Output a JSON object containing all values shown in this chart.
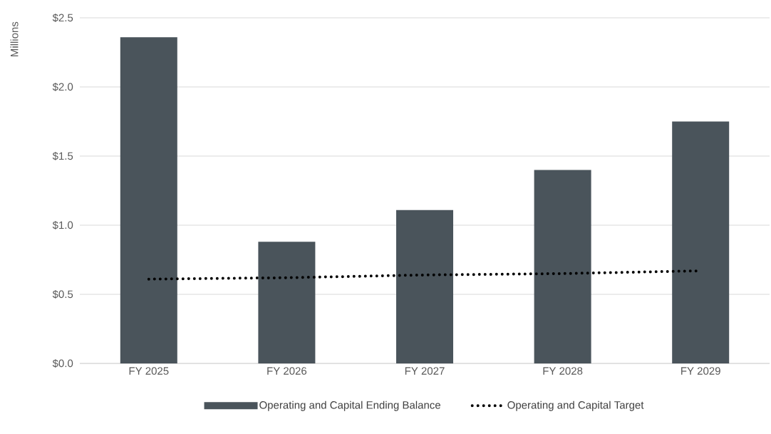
{
  "chart_data": {
    "type": "bar",
    "ylabel": "Millions",
    "categories": [
      "FY 2025",
      "FY 2026",
      "FY 2027",
      "FY 2028",
      "FY 2029"
    ],
    "series": [
      {
        "name": "Operating and Capital Ending Balance",
        "color": "#4a545b",
        "values": [
          2.36,
          0.88,
          1.11,
          1.4,
          1.75
        ]
      },
      {
        "name": "Operating and Capital Target",
        "type": "line",
        "line_style": "dotted",
        "color": "#000000",
        "values": [
          0.61,
          0.62,
          0.64,
          0.65,
          0.67
        ]
      }
    ],
    "ylim": [
      0,
      2.5
    ],
    "yticks": [
      {
        "value": 0,
        "label": "$0.0"
      },
      {
        "value": 0.5,
        "label": "$0.5"
      },
      {
        "value": 1,
        "label": "$1.0"
      },
      {
        "value": 1.5,
        "label": "$1.5"
      },
      {
        "value": 2,
        "label": "$2.0"
      },
      {
        "value": 2.5,
        "label": "$2.5"
      }
    ],
    "grid": "y",
    "legend": "bottom"
  }
}
